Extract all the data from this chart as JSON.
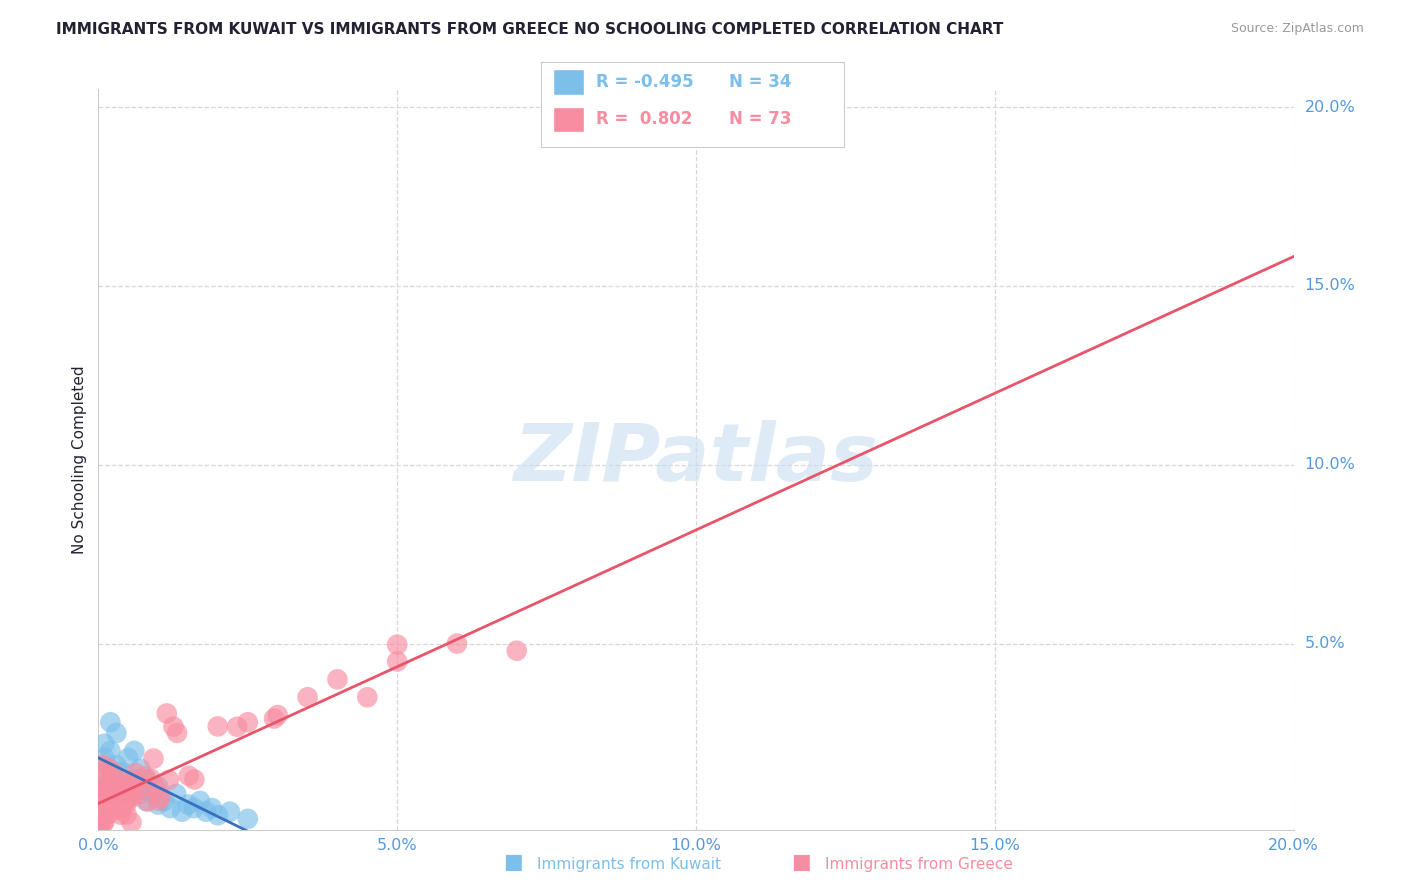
{
  "title": "IMMIGRANTS FROM KUWAIT VS IMMIGRANTS FROM GREECE NO SCHOOLING COMPLETED CORRELATION CHART",
  "source_text": "Source: ZipAtlas.com",
  "ylabel": "No Schooling Completed",
  "watermark": "ZIPatlas",
  "xlim": [
    0.0,
    0.2
  ],
  "ylim": [
    -0.002,
    0.205
  ],
  "xtick_labels": [
    "0.0%",
    "5.0%",
    "10.0%",
    "15.0%",
    "20.0%"
  ],
  "xtick_vals": [
    0.0,
    0.05,
    0.1,
    0.15,
    0.2
  ],
  "ytick_labels": [
    "20.0%",
    "15.0%",
    "10.0%",
    "5.0%"
  ],
  "ytick_vals": [
    0.2,
    0.15,
    0.1,
    0.05
  ],
  "kuwait_color": "#7bbfea",
  "greece_color": "#f88ca0",
  "kuwait_line_color": "#3a6fbd",
  "greece_line_color": "#e8546a",
  "background_color": "#ffffff",
  "grid_color": "#d8d8d8",
  "title_color": "#222233",
  "title_fontsize": 11.0,
  "axis_label_color": "#222233",
  "tick_label_color": "#5599dd",
  "legend_R1": "R = -0.495",
  "legend_N1": "N = 34",
  "legend_R2": "R =  0.802",
  "legend_N2": "N = 73",
  "legend_label1": "Immigrants from Kuwait",
  "legend_label2": "Immigrants from Greece"
}
